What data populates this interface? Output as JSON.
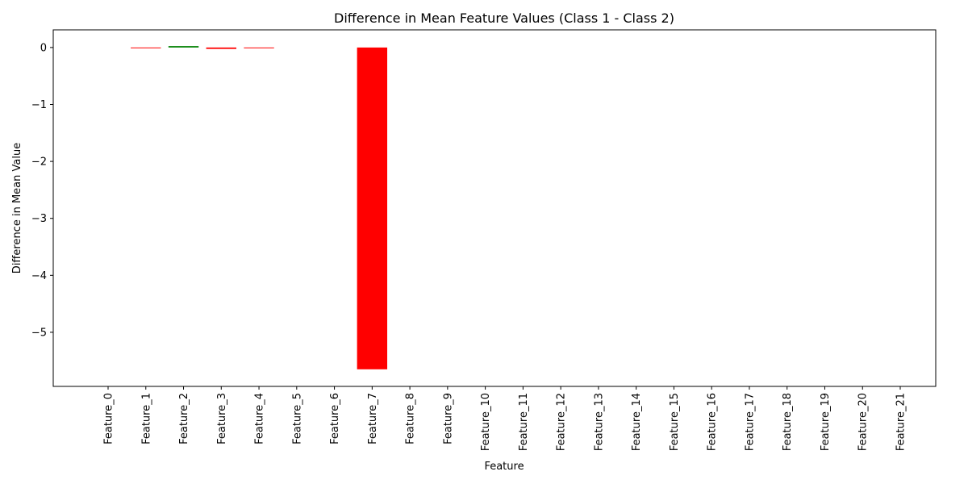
{
  "chart_data": {
    "type": "bar",
    "title": "Difference in Mean Feature Values (Class 1 - Class 2)",
    "xlabel": "Feature",
    "ylabel": "Difference in Mean Value",
    "categories": [
      "Feature_0",
      "Feature_1",
      "Feature_2",
      "Feature_3",
      "Feature_4",
      "Feature_5",
      "Feature_6",
      "Feature_7",
      "Feature_8",
      "Feature_9",
      "Feature_10",
      "Feature_11",
      "Feature_12",
      "Feature_13",
      "Feature_14",
      "Feature_15",
      "Feature_16",
      "Feature_17",
      "Feature_18",
      "Feature_19",
      "Feature_20",
      "Feature_21"
    ],
    "values": [
      0,
      -0.008,
      0.025,
      -0.025,
      -0.006,
      0,
      0,
      -5.65,
      0,
      0,
      0,
      0,
      0,
      0,
      0,
      0,
      0,
      0,
      0,
      0,
      0,
      0
    ],
    "ylim": [
      -5.95,
      0.31
    ],
    "yticks": [
      0,
      -1,
      -2,
      -3,
      -4,
      -5
    ],
    "ytick_labels": [
      "0",
      "−1",
      "−2",
      "−3",
      "−4",
      "−5"
    ],
    "colors": {
      "positive": "#008000",
      "negative": "#ff0000"
    },
    "grid": false,
    "legend": "none"
  }
}
